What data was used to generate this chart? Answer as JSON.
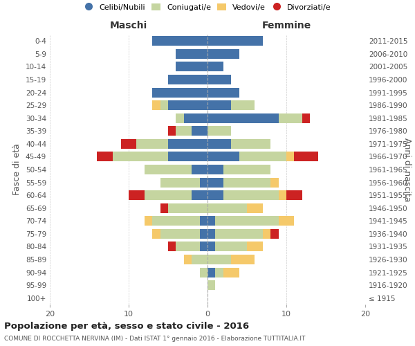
{
  "age_groups": [
    "100+",
    "95-99",
    "90-94",
    "85-89",
    "80-84",
    "75-79",
    "70-74",
    "65-69",
    "60-64",
    "55-59",
    "50-54",
    "45-49",
    "40-44",
    "35-39",
    "30-34",
    "25-29",
    "20-24",
    "15-19",
    "10-14",
    "5-9",
    "0-4"
  ],
  "birth_years": [
    "≤ 1915",
    "1916-1920",
    "1921-1925",
    "1926-1930",
    "1931-1935",
    "1936-1940",
    "1941-1945",
    "1946-1950",
    "1951-1955",
    "1956-1960",
    "1961-1965",
    "1966-1970",
    "1971-1975",
    "1976-1980",
    "1981-1985",
    "1986-1990",
    "1991-1995",
    "1996-2000",
    "2001-2005",
    "2006-2010",
    "2011-2015"
  ],
  "colors": {
    "celibi": "#4472a8",
    "coniugati": "#c5d5a0",
    "vedovi": "#f5c96a",
    "divorziati": "#cc2222"
  },
  "maschi": {
    "celibi": [
      0,
      0,
      0,
      0,
      1,
      1,
      1,
      0,
      2,
      1,
      2,
      5,
      5,
      2,
      3,
      5,
      7,
      5,
      4,
      4,
      7
    ],
    "coniugati": [
      0,
      0,
      1,
      2,
      3,
      5,
      6,
      5,
      6,
      5,
      6,
      7,
      4,
      2,
      1,
      1,
      0,
      0,
      0,
      0,
      0
    ],
    "vedovi": [
      0,
      0,
      0,
      1,
      0,
      1,
      1,
      0,
      0,
      0,
      0,
      0,
      0,
      0,
      0,
      1,
      0,
      0,
      0,
      0,
      0
    ],
    "divorziati": [
      0,
      0,
      0,
      0,
      1,
      0,
      0,
      1,
      2,
      0,
      0,
      2,
      2,
      1,
      0,
      0,
      0,
      0,
      0,
      0,
      0
    ]
  },
  "femmine": {
    "celibi": [
      0,
      0,
      1,
      0,
      1,
      1,
      1,
      0,
      2,
      2,
      2,
      4,
      3,
      0,
      9,
      3,
      4,
      3,
      2,
      4,
      7
    ],
    "coniugati": [
      0,
      1,
      1,
      3,
      4,
      6,
      8,
      5,
      7,
      6,
      6,
      6,
      5,
      3,
      3,
      3,
      0,
      0,
      0,
      0,
      0
    ],
    "vedovi": [
      0,
      0,
      2,
      3,
      2,
      1,
      2,
      2,
      1,
      1,
      0,
      1,
      0,
      0,
      0,
      0,
      0,
      0,
      0,
      0,
      0
    ],
    "divorziati": [
      0,
      0,
      0,
      0,
      0,
      1,
      0,
      0,
      2,
      0,
      0,
      3,
      0,
      0,
      1,
      0,
      0,
      0,
      0,
      0,
      0
    ]
  },
  "title": "Popolazione per età, sesso e stato civile - 2016",
  "subtitle": "COMUNE DI ROCCHETTA NERVINA (IM) - Dati ISTAT 1° gennaio 2016 - Elaborazione TUTTITALIA.IT",
  "ylabel_left": "Fasce di età",
  "ylabel_right": "Anni di nascita",
  "xlabel_left": "Maschi",
  "xlabel_right": "Femmine",
  "xlim": 20,
  "background": "#ffffff"
}
